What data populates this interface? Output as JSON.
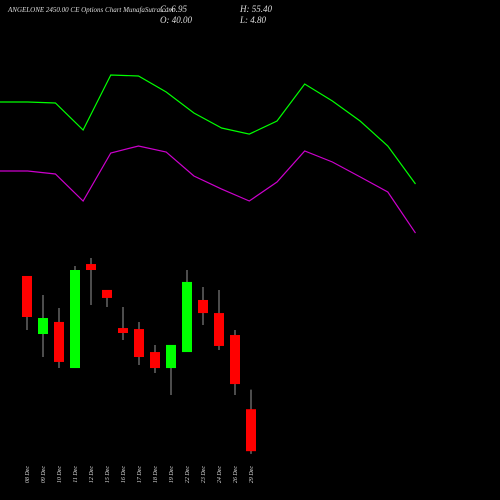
{
  "chart_data": [
    {
      "type": "line",
      "title": "ANGELONE 2450.00  CE Options  Chart MunafaSutra.com",
      "ylim": [
        0,
        200
      ],
      "series": [
        {
          "color": "#00ff00",
          "values": [
            143.6,
            143.6,
            142.7,
            118.2,
            168.2,
            167.3,
            152.7,
            133.6,
            120,
            114.5,
            126.4,
            160,
            144.5,
            126.4,
            103.6,
            69.1
          ]
        },
        {
          "color": "#cc00cc",
          "values": [
            80.9,
            80.9,
            78.2,
            53.6,
            97.3,
            103.6,
            98.2,
            76.4,
            64.5,
            53.6,
            70.9,
            99.1,
            89.1,
            75.5,
            61.8,
            24.5
          ]
        }
      ]
    },
    {
      "type": "candlestick",
      "stats": {
        "close": "C: 6.95",
        "high": "H: 55.40",
        "open": "O: 40.00",
        "low": "L: 4.80"
      },
      "ylim": [
        0,
        160
      ],
      "up_color": "#00ff00",
      "down_color": "#ff0000",
      "categories": [
        "08 Dec",
        "09 Dec",
        "10 Dec",
        "11 Dec",
        "12 Dec",
        "15 Dec",
        "16 Dec",
        "17 Dec",
        "18 Dec",
        "19 Dec",
        "22 Dec",
        "23 Dec",
        "24 Dec",
        "26 Dec",
        "29 Dec"
      ],
      "open": [
        144.9,
        99.2,
        108.7,
        72.4,
        154.3,
        133.9,
        103.9,
        103.1,
        85.0,
        72.4,
        85.0,
        126.0,
        115.7,
        98.4,
        40
      ],
      "high": [
        144.9,
        129.9,
        119.7,
        152.8,
        159.1,
        133.9,
        120.5,
        108.7,
        90.6,
        90.6,
        149.6,
        136.2,
        133.9,
        102.4,
        55.4
      ],
      "low": [
        102.4,
        81.1,
        72.4,
        72.4,
        122.0,
        120.5,
        94.5,
        74.8,
        68.5,
        51.2,
        85.0,
        106.3,
        86.6,
        51.2,
        4.8
      ],
      "close": [
        112.6,
        111.8,
        77.2,
        149.6,
        149.6,
        127.6,
        100.0,
        81.1,
        72.4,
        90.6,
        140.2,
        115.7,
        89.8,
        59.8,
        6.95
      ]
    }
  ]
}
